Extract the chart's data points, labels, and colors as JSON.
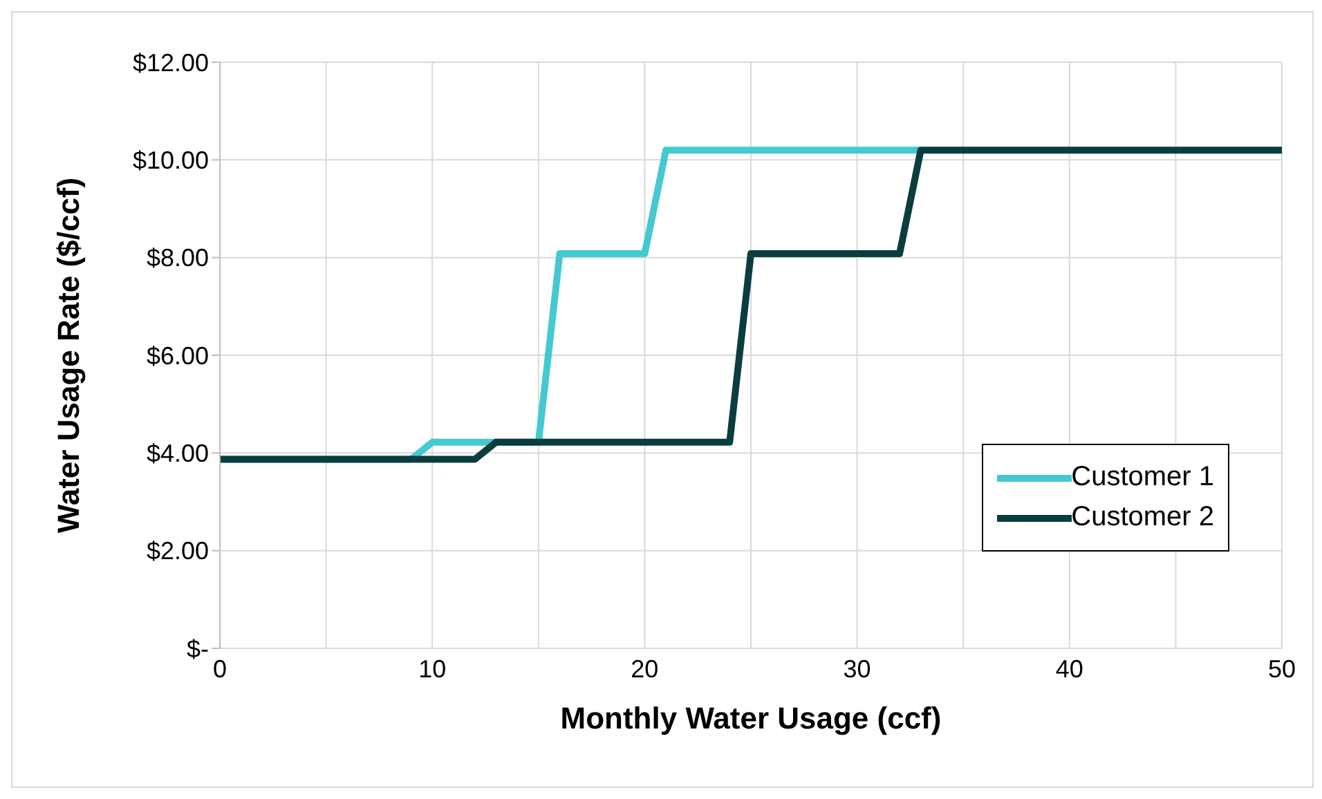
{
  "chart_data": {
    "type": "line",
    "xlabel": "Monthly Water Usage (ccf)",
    "ylabel": "Water Usage Rate ($/ccf)",
    "xlim": [
      0,
      50
    ],
    "xticks": [
      0,
      {
        "value": 5,
        "label": null
      },
      10,
      {
        "value": 15,
        "label": null
      },
      20,
      {
        "value": 25,
        "label": null
      },
      30,
      {
        "value": 35,
        "label": null
      },
      40,
      {
        "value": 45,
        "label": null
      },
      50
    ],
    "ylim": [
      0,
      12
    ],
    "yticks": [
      {
        "value": 0,
        "label": "$-"
      },
      {
        "value": 2,
        "label": "$2.00"
      },
      {
        "value": 4,
        "label": "$4.00"
      },
      {
        "value": 6,
        "label": "$6.00"
      },
      {
        "value": 8,
        "label": "$8.00"
      },
      {
        "value": 10,
        "label": "$10.00"
      },
      {
        "value": 12,
        "label": "$12.00"
      }
    ],
    "grid": true,
    "legend": "bottom right",
    "marker": "none",
    "line_style": "solid",
    "series": [
      {
        "name": "Customer 1",
        "color": "#45c9d1",
        "x": [
          0,
          9,
          10,
          15,
          16,
          20,
          21,
          33
        ],
        "values": [
          3.87,
          3.87,
          4.22,
          4.22,
          8.08,
          8.08,
          10.2,
          10.2
        ]
      },
      {
        "name": "Customer 2",
        "color": "#0b3d3f",
        "x": [
          0,
          12,
          13,
          24,
          25,
          32,
          33,
          50
        ],
        "values": [
          3.87,
          3.87,
          4.22,
          4.22,
          8.08,
          8.08,
          10.2,
          10.2
        ]
      }
    ]
  }
}
